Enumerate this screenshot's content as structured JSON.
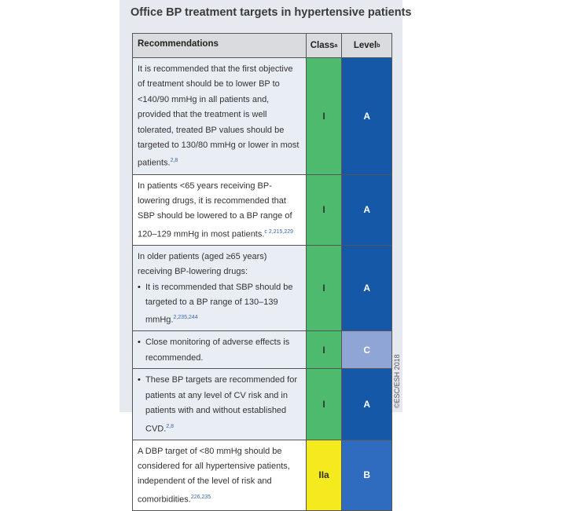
{
  "title": "Office BP treatment targets in hypertensive patients",
  "table": {
    "header": [
      {
        "text": "Recommendations"
      },
      {
        "text": "Class",
        "sup": "a"
      },
      {
        "text": "Level",
        "sup": "b"
      }
    ],
    "rows": [
      {
        "text": "It is recommended that the first objective of treatment should be to lower BP to <140/90 mmHg in all patients and, provided that the treatment is well tolerated, treated BP values should be targeted to 130/80 mmHg or lower in most patients.",
        "ref": "2,8",
        "class": "I",
        "level": "A",
        "class_color": "#4dba6e",
        "level_color": "#1558a8",
        "shade": "#e9eef5"
      },
      {
        "text": "In patients <65 years receiving BP-lowering drugs, it is recommended that SBP should be lowered to a BP range of 120–129 mmHg in most patients.",
        "ref": "c 2,215,229",
        "class": "I",
        "level": "A",
        "class_color": "#4dba6e",
        "level_color": "#1558a8",
        "shade": "#ffffff"
      },
      {
        "intro": "In older patients (aged ≥65 years) receiving BP-lowering drugs:",
        "bullet": "It is recommended that SBP should be targeted to a BP range of 130–139 mmHg.",
        "ref": "2,235,244",
        "class": "I",
        "level": "A",
        "class_color": "#4dba6e",
        "level_color": "#1558a8",
        "shade": "#e9eef5"
      },
      {
        "bullet": "Close monitoring of adverse effects is recommended.",
        "class": "I",
        "level": "C",
        "class_color": "#4dba6e",
        "level_color": "#8fa5d6",
        "shade": "#e9eef5"
      },
      {
        "bullet": "These BP targets are recommended for patients at any level of CV risk and in patients with and without established CVD.",
        "ref": "2,8",
        "class": "I",
        "level": "A",
        "class_color": "#4dba6e",
        "level_color": "#1558a8",
        "shade": "#e9eef5"
      },
      {
        "text": "A DBP target of <80 mmHg should be considered for all hypertensive patients, independent of the level of risk and comorbidities.",
        "ref": "226,235",
        "class": "IIa",
        "level": "B",
        "class_color": "#f5ea1e",
        "level_color": "#2f6cbf",
        "shade": "#ffffff"
      }
    ]
  },
  "footer": "©ESC/ESH 2018"
}
